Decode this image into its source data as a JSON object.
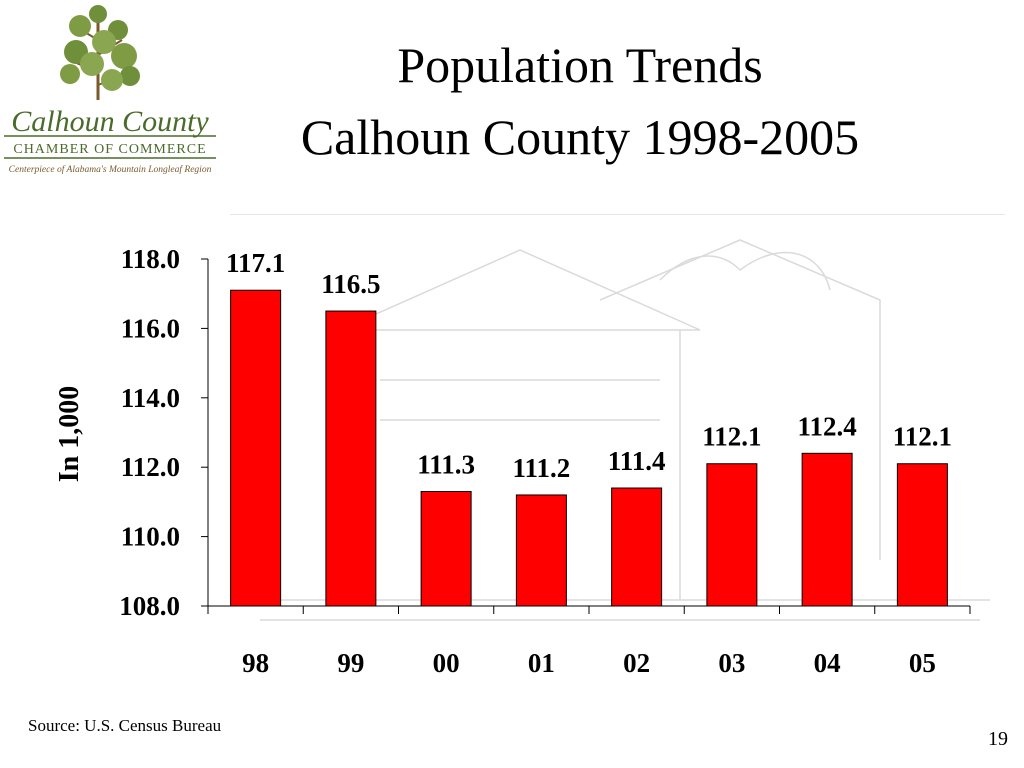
{
  "slide": {
    "title_line1": "Population Trends",
    "title_line2": "Calhoun County 1998-2005",
    "source": "Source: U.S. Census Bureau",
    "page_number": "19"
  },
  "logo": {
    "name": "Calhoun County",
    "org": "CHAMBER OF COMMERCE",
    "tagline": "Centerpiece of Alabama's Mountain Longleaf Region"
  },
  "chart_data": {
    "type": "bar",
    "categories": [
      "98",
      "99",
      "00",
      "01",
      "02",
      "03",
      "04",
      "05"
    ],
    "values": [
      117.1,
      116.5,
      111.3,
      111.2,
      111.4,
      112.1,
      112.4,
      112.1
    ],
    "data_labels": [
      "117.1",
      "116.5",
      "111.3",
      "111.2",
      "111.4",
      "112.1",
      "112.4",
      "112.1"
    ],
    "title": "",
    "xlabel": "",
    "ylabel": "In 1,000",
    "ylim": [
      108.0,
      118.0
    ],
    "yticks": [
      "108.0",
      "110.0",
      "112.0",
      "114.0",
      "116.0",
      "118.0"
    ],
    "bar_color": "#ff0000",
    "grid": false,
    "legend": "none"
  },
  "colors": {
    "logo_green": "#4a6b2a",
    "logo_brown": "#7a5a2e"
  }
}
